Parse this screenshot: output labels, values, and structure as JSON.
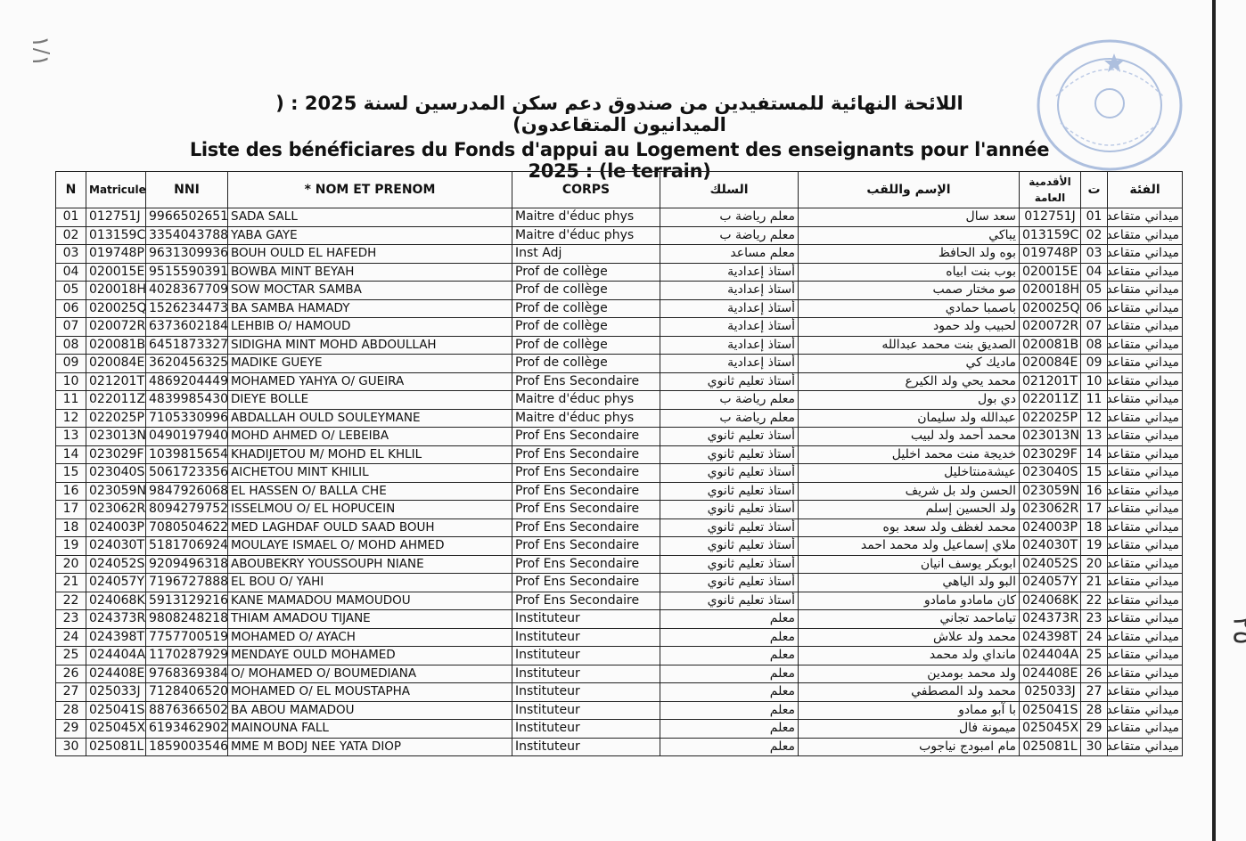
{
  "page_number": "١/١",
  "margin_mark": "٢٥",
  "title_ar": "اللائحة النهائية للمستفيدين من صندوق دعم سكن المدرسين لسنة 2025 : ( الميدانيون المتقاعدون)",
  "title_fr": "Liste des bénéficiares du Fonds d'appui au Logement des enseignants pour l'année 2025 : (le terrain)",
  "stamp_color": "#6f8fc8",
  "headers": {
    "n": "N",
    "matricule": "Matricule",
    "nni": "NNI",
    "nom": "* NOM ET PRENOM",
    "corps": "CORPS",
    "silk": "السلك",
    "name_ar": "الإسم واللقب",
    "seniority": "الأقدمية العامة",
    "t": "ت",
    "category": "الفئة"
  },
  "rows": [
    [
      "01",
      "012751J",
      "9966502651",
      "SADA SALL",
      "Maitre d'éduc phys",
      "معلم رياضة ب",
      "سعد سال",
      "012751J",
      "01",
      "ميداني متقاعد"
    ],
    [
      "02",
      "013159C",
      "3354043788",
      "YABA GAYE",
      "Maitre d'éduc phys",
      "معلم رياضة ب",
      "يباكي",
      "013159C",
      "02",
      "ميداني متقاعد"
    ],
    [
      "03",
      "019748P",
      "9631309936",
      "BOUH OULD EL HAFEDH",
      "Inst Adj",
      "معلم مساعد",
      "بوه ولد الحافظ",
      "019748P",
      "03",
      "ميداني متقاعد"
    ],
    [
      "04",
      "020015E",
      "9515590391",
      "BOWBA MINT BEYAH",
      "Prof de collège",
      "أستاذ إعدادية",
      "بوب بنت ابياه",
      "020015E",
      "04",
      "ميداني متقاعد"
    ],
    [
      "05",
      "020018H",
      "4028367709",
      "SOW MOCTAR SAMBA",
      "Prof de collège",
      "أستاذ إعدادية",
      "صو مختار صمب",
      "020018H",
      "05",
      "ميداني متقاعد"
    ],
    [
      "06",
      "020025Q",
      "1526234473",
      "BA SAMBA HAMADY",
      "Prof de collège",
      "أستاذ إعدادية",
      "باصمبا حمادي",
      "020025Q",
      "06",
      "ميداني متقاعد"
    ],
    [
      "07",
      "020072R",
      "6373602184",
      "LEHBIB O/ HAMOUD",
      "Prof de collège",
      "أستاذ إعدادية",
      "لحبيب ولد حمود",
      "020072R",
      "07",
      "ميداني متقاعد"
    ],
    [
      "08",
      "020081B",
      "6451873327",
      "SIDIGHA MINT MOHD ABDOULLAH",
      "Prof de collège",
      "أستاذ إعدادية",
      "الصديق بنت محمد عبدالله",
      "020081B",
      "08",
      "ميداني متقاعد"
    ],
    [
      "09",
      "020084E",
      "3620456325",
      "MADIKE GUEYE",
      "Prof de collège",
      "أستاذ إعدادية",
      "ماديك كي",
      "020084E",
      "09",
      "ميداني متقاعد"
    ],
    [
      "10",
      "021201T",
      "4869204449",
      "MOHAMED YAHYA O/ GUEIRA",
      "Prof Ens Secondaire",
      "أستاذ تعليم ثانوي",
      "محمد يحي ولد الكيرع",
      "021201T",
      "10",
      "ميداني متقاعد"
    ],
    [
      "11",
      "022011Z",
      "4839985430",
      "DIEYE BOLLE",
      "Maitre d'éduc phys",
      "معلم رياضة ب",
      "دي بول",
      "022011Z",
      "11",
      "ميداني متقاعد"
    ],
    [
      "12",
      "022025P",
      "7105330996",
      "ABDALLAH OULD SOULEYMANE",
      "Maitre d'éduc phys",
      "معلم رياضة ب",
      "عبدالله ولد سليمان",
      "022025P",
      "12",
      "ميداني متقاعد"
    ],
    [
      "13",
      "023013N",
      "0490197940",
      "MOHD AHMED O/ LEBEIBA",
      "Prof Ens Secondaire",
      "أستاذ تعليم ثانوي",
      "محمد أحمد ولد لبيب",
      "023013N",
      "13",
      "ميداني متقاعد"
    ],
    [
      "14",
      "023029F",
      "1039815654",
      "KHADIJETOU M/ MOHD EL KHLIL",
      "Prof Ens Secondaire",
      "أستاذ تعليم ثانوي",
      "خديجة منت محمد اخليل",
      "023029F",
      "14",
      "ميداني متقاعد"
    ],
    [
      "15",
      "023040S",
      "5061723356",
      "AICHETOU MINT KHILIL",
      "Prof Ens Secondaire",
      "أستاذ تعليم ثانوي",
      "عيشةمنتاخليل",
      "023040S",
      "15",
      "ميداني متقاعد"
    ],
    [
      "16",
      "023059N",
      "9847926068",
      "EL HASSEN O/ BALLA CHE",
      "Prof Ens Secondaire",
      "أستاذ تعليم ثانوي",
      "الحسن ولد بل شريف",
      "023059N",
      "16",
      "ميداني متقاعد"
    ],
    [
      "17",
      "023062R",
      "8094279752",
      "ISSELMOU O/ EL HOPUCEIN",
      "Prof Ens Secondaire",
      "أستاذ تعليم ثانوي",
      "ولد الحسين إسلم",
      "023062R",
      "17",
      "ميداني متقاعد"
    ],
    [
      "18",
      "024003P",
      "7080504622",
      "MED LAGHDAF OULD SAAD BOUH",
      "Prof Ens Secondaire",
      "أستاذ تعليم ثانوي",
      "محمد لغظف ولد سعد بوه",
      "024003P",
      "18",
      "ميداني متقاعد"
    ],
    [
      "19",
      "024030T",
      "5181706924",
      "MOULAYE ISMAEL O/ MOHD AHMED",
      "Prof Ens Secondaire",
      "أستاذ تعليم ثانوي",
      "ملاي إسماعيل ولد محمد احمد",
      "024030T",
      "19",
      "ميداني متقاعد"
    ],
    [
      "20",
      "024052S",
      "9209496318",
      "ABOUBEKRY YOUSSOUPH NIANE",
      "Prof Ens Secondaire",
      "أستاذ تعليم ثانوي",
      "ابوبكر يوسف انيان",
      "024052S",
      "20",
      "ميداني متقاعد"
    ],
    [
      "21",
      "024057Y",
      "7196727888",
      "EL BOU O/ YAHI",
      "Prof Ens Secondaire",
      "أستاذ تعليم ثانوي",
      "البو ولد الياهي",
      "024057Y",
      "21",
      "ميداني متقاعد"
    ],
    [
      "22",
      "024068K",
      "5913129216",
      "KANE MAMADOU MAMOUDOU",
      "Prof Ens Secondaire",
      "أستاذ تعليم ثانوي",
      "كان مامادو مامادو",
      "024068K",
      "22",
      "ميداني متقاعد"
    ],
    [
      "23",
      "024373R",
      "9808248218",
      "THIAM AMADOU TIJANE",
      "Instituteur",
      "معلم",
      "تياماحمد تجاني",
      "024373R",
      "23",
      "ميداني متقاعد"
    ],
    [
      "24",
      "024398T",
      "7757700519",
      "MOHAMED O/ AYACH",
      "Instituteur",
      "معلم",
      "محمد ولد علاش",
      "024398T",
      "24",
      "ميداني متقاعد"
    ],
    [
      "25",
      "024404A",
      "1170287929",
      "MENDAYE OULD MOHAMED",
      "Instituteur",
      "معلم",
      "مانداي ولد محمد",
      "024404A",
      "25",
      "ميداني متقاعد"
    ],
    [
      "26",
      "024408E",
      "9768369384",
      "O/ MOHAMED O/ BOUMEDIANA",
      "Instituteur",
      "معلم",
      "ولد محمد بومدين",
      "024408E",
      "26",
      "ميداني متقاعد"
    ],
    [
      "27",
      "025033J",
      "7128406520",
      "MOHAMED O/ EL MOUSTAPHA",
      "Instituteur",
      "معلم",
      "محمد ولد المصطفي",
      "025033J",
      "27",
      "ميداني متقاعد"
    ],
    [
      "28",
      "025041S",
      "8876366502",
      "BA ABOU MAMADOU",
      "Instituteur",
      "معلم",
      "با آبو ممادو",
      "025041S",
      "28",
      "ميداني متقاعد"
    ],
    [
      "29",
      "025045X",
      "6193462902",
      "MAINOUNA FALL",
      "Instituteur",
      "معلم",
      "ميمونة فال",
      "025045X",
      "29",
      "ميداني متقاعد"
    ],
    [
      "30",
      "025081L",
      "1859003546",
      "MME M BODJ NEE YATA DIOP",
      "Instituteur",
      "معلم",
      "مام امبودج نياجوب",
      "025081L",
      "30",
      "ميداني متقاعد"
    ]
  ]
}
